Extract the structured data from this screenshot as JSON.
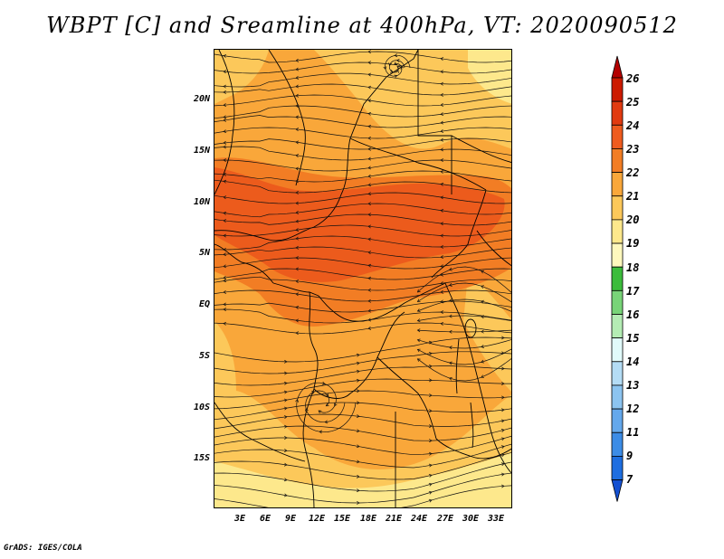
{
  "title": "WBPT [C] and Sreamline at 400hPa, VT: 2020090512",
  "credit": "GrADS: IGES/COLA",
  "map": {
    "region": "Central and Eastern Africa",
    "lon_range": [
      0,
      35
    ],
    "lat_range": [
      -20,
      25
    ],
    "lat_labels": [
      "20N",
      "15N",
      "10N",
      "5N",
      "EQ",
      "5S",
      "10S",
      "15S"
    ],
    "lon_labels": [
      "3E",
      "6E",
      "9E",
      "12E",
      "15E",
      "18E",
      "21E",
      "24E",
      "27E",
      "30E",
      "33E"
    ],
    "colors": {
      "band_19_20": "#fde88c",
      "band_20_21": "#fcc85a",
      "band_21_22": "#f9a73a",
      "band_22_23": "#f27d24",
      "band_23_24": "#ec5b1c",
      "streamline": "#000000"
    }
  },
  "colorbar": {
    "levels": [
      "26",
      "25",
      "24",
      "23",
      "22",
      "21",
      "20",
      "19",
      "18",
      "17",
      "16",
      "15",
      "14",
      "13",
      "12",
      "11",
      "9",
      "7"
    ],
    "colors": [
      "#b40000",
      "#cc1a00",
      "#e13a10",
      "#ee5b1e",
      "#f27d24",
      "#f9a73a",
      "#fcc85a",
      "#fde88c",
      "#fef8bd",
      "#3cbc3c",
      "#78d478",
      "#b4ecb4",
      "#e1fafa",
      "#b4dcf5",
      "#8cc4f0",
      "#64a8ec",
      "#3c8ce6",
      "#1e6ee0",
      "#1450d2"
    ]
  }
}
